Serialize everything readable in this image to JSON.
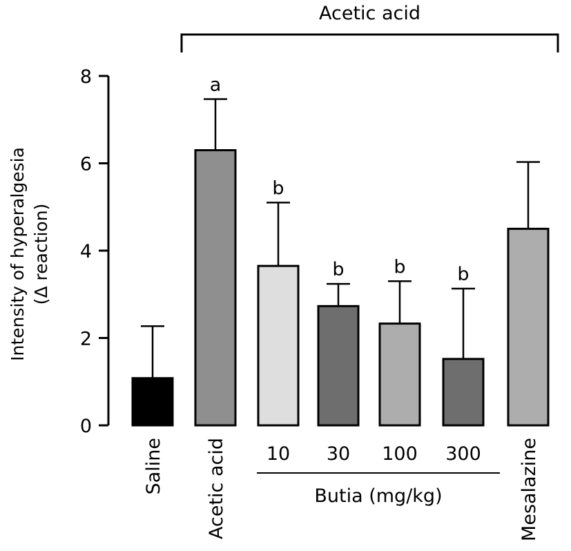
{
  "chart_data": {
    "type": "bar",
    "ylabel": [
      "Intensity of hyperalgesia",
      "(Δ reaction)"
    ],
    "ylim": [
      0,
      8
    ],
    "yticks": [
      0,
      2,
      4,
      6,
      8
    ],
    "categories": [
      "Saline",
      "Acetic acid",
      "10",
      "30",
      "100",
      "300",
      "Mesalazine"
    ],
    "values": [
      1.08,
      6.3,
      3.65,
      2.73,
      2.33,
      1.52,
      4.5
    ],
    "error_upper": [
      2.27,
      7.47,
      5.1,
      3.24,
      3.3,
      3.13,
      6.03
    ],
    "significance": [
      "",
      "a",
      "b",
      "b",
      "b",
      "b",
      ""
    ],
    "bar_colors": [
      "#000000",
      "#8f8f8f",
      "#dedede",
      "#6e6e6e",
      "#adadad",
      "#6e6e6e",
      "#adadad"
    ],
    "group_brackets": [
      {
        "label": "Acetic acid",
        "from_index": 1,
        "to_index": 6,
        "position": "top"
      },
      {
        "label": "Butia (mg/kg)",
        "from_index": 2,
        "to_index": 5,
        "position": "bottom"
      }
    ],
    "grid": false,
    "legend": "none"
  }
}
